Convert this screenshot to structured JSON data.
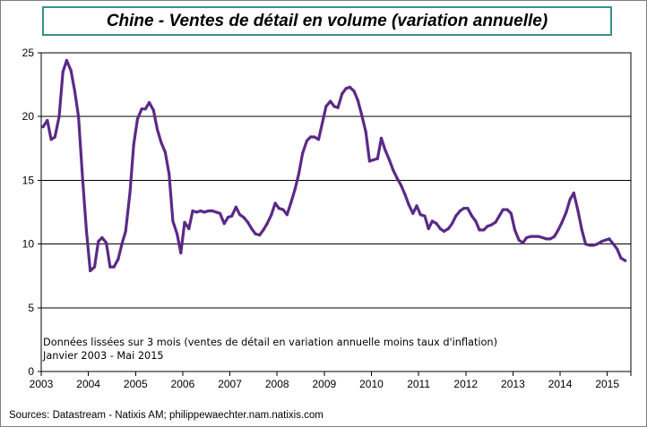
{
  "chart_data": {
    "type": "line",
    "title": "Chine - Ventes de détail en volume (variation annuelle)",
    "xlabel": "",
    "ylabel": "",
    "xlim": [
      2003,
      2015.5
    ],
    "ylim": [
      0,
      25
    ],
    "y_ticks": [
      0,
      5,
      10,
      15,
      20,
      25
    ],
    "x_tick_labels": [
      "2003",
      "2004",
      "2005",
      "2006",
      "2007",
      "2008",
      "2009",
      "2010",
      "2011",
      "2012",
      "2013",
      "2014",
      "2015"
    ],
    "grid": "horizontal",
    "annotation_lines": [
      "Données lissées sur 3 mois  (ventes de détail en variation annuelle moins  taux d'inflation)",
      "Janvier 2003  - Mai 2015"
    ],
    "series": [
      {
        "name": "Ventes de détail en volume",
        "color": "#5b2a86",
        "x": [
          2003.04,
          2003.13,
          2003.21,
          2003.29,
          2003.38,
          2003.46,
          2003.54,
          2003.63,
          2003.71,
          2003.79,
          2003.88,
          2003.96,
          2004.04,
          2004.13,
          2004.21,
          2004.29,
          2004.38,
          2004.46,
          2004.54,
          2004.63,
          2004.71,
          2004.79,
          2004.88,
          2004.96,
          2005.04,
          2005.13,
          2005.21,
          2005.29,
          2005.38,
          2005.46,
          2005.54,
          2005.63,
          2005.71,
          2005.79,
          2005.88,
          2005.96,
          2006.04,
          2006.13,
          2006.21,
          2006.29,
          2006.38,
          2006.46,
          2006.54,
          2006.63,
          2006.71,
          2006.79,
          2006.88,
          2006.96,
          2007.04,
          2007.13,
          2007.21,
          2007.29,
          2007.38,
          2007.46,
          2007.54,
          2007.63,
          2007.71,
          2007.79,
          2007.88,
          2007.96,
          2008.04,
          2008.13,
          2008.21,
          2008.29,
          2008.38,
          2008.46,
          2008.54,
          2008.63,
          2008.71,
          2008.79,
          2008.88,
          2008.96,
          2009.04,
          2009.13,
          2009.21,
          2009.29,
          2009.38,
          2009.46,
          2009.54,
          2009.63,
          2009.71,
          2009.79,
          2009.88,
          2009.96,
          2010.04,
          2010.13,
          2010.21,
          2010.29,
          2010.38,
          2010.46,
          2010.54,
          2010.63,
          2010.71,
          2010.79,
          2010.88,
          2010.96,
          2011.04,
          2011.13,
          2011.21,
          2011.29,
          2011.38,
          2011.46,
          2011.54,
          2011.63,
          2011.71,
          2011.79,
          2011.88,
          2011.96,
          2012.04,
          2012.13,
          2012.21,
          2012.29,
          2012.38,
          2012.46,
          2012.54,
          2012.63,
          2012.71,
          2012.79,
          2012.88,
          2012.96,
          2013.04,
          2013.13,
          2013.21,
          2013.29,
          2013.38,
          2013.46,
          2013.54,
          2013.63,
          2013.71,
          2013.79,
          2013.88,
          2013.96,
          2014.04,
          2014.13,
          2014.21,
          2014.29,
          2014.38,
          2014.46,
          2014.54,
          2014.63,
          2014.71,
          2014.79,
          2014.88,
          2014.96,
          2015.04,
          2015.13,
          2015.21,
          2015.29,
          2015.38
        ],
        "values": [
          19.2,
          19.7,
          18.2,
          18.4,
          20.0,
          23.5,
          24.4,
          23.6,
          22.0,
          20.0,
          15.0,
          11.0,
          7.9,
          8.2,
          10.2,
          10.5,
          10.1,
          8.2,
          8.2,
          8.8,
          10.0,
          11.0,
          14.0,
          17.8,
          19.8,
          20.6,
          20.6,
          21.1,
          20.5,
          19.0,
          18.0,
          17.2,
          15.5,
          11.8,
          10.8,
          9.3,
          11.7,
          11.2,
          12.6,
          12.5,
          12.6,
          12.5,
          12.6,
          12.6,
          12.5,
          12.4,
          11.6,
          12.1,
          12.2,
          12.9,
          12.3,
          12.1,
          11.7,
          11.2,
          10.8,
          10.7,
          11.1,
          11.6,
          12.3,
          13.2,
          12.8,
          12.7,
          12.3,
          13.2,
          14.3,
          15.5,
          17.1,
          18.1,
          18.4,
          18.4,
          18.2,
          19.5,
          20.8,
          21.2,
          20.8,
          20.7,
          21.8,
          22.2,
          22.3,
          22.0,
          21.3,
          20.2,
          18.8,
          16.5,
          16.6,
          16.7,
          18.3,
          17.4,
          16.6,
          15.8,
          15.2,
          14.6,
          13.9,
          13.1,
          12.4,
          13.0,
          12.3,
          12.2,
          11.2,
          11.8,
          11.6,
          11.2,
          11.0,
          11.2,
          11.6,
          12.2,
          12.6,
          12.8,
          12.8,
          12.2,
          11.8,
          11.1,
          11.1,
          11.4,
          11.5,
          11.7,
          12.2,
          12.7,
          12.7,
          12.4,
          11.1,
          10.3,
          10.1,
          10.5,
          10.6,
          10.6,
          10.6,
          10.5,
          10.4,
          10.4,
          10.6,
          11.1,
          11.7,
          12.5,
          13.5,
          14.0,
          12.6,
          11.1,
          10.0,
          9.9,
          9.9,
          10.0,
          10.2,
          10.3,
          10.4,
          10.0,
          9.6,
          8.9,
          8.7
        ]
      }
    ]
  },
  "source_text": "Sources: Datastream - Natixis AM;  philippewaechter.nam.natixis.com"
}
